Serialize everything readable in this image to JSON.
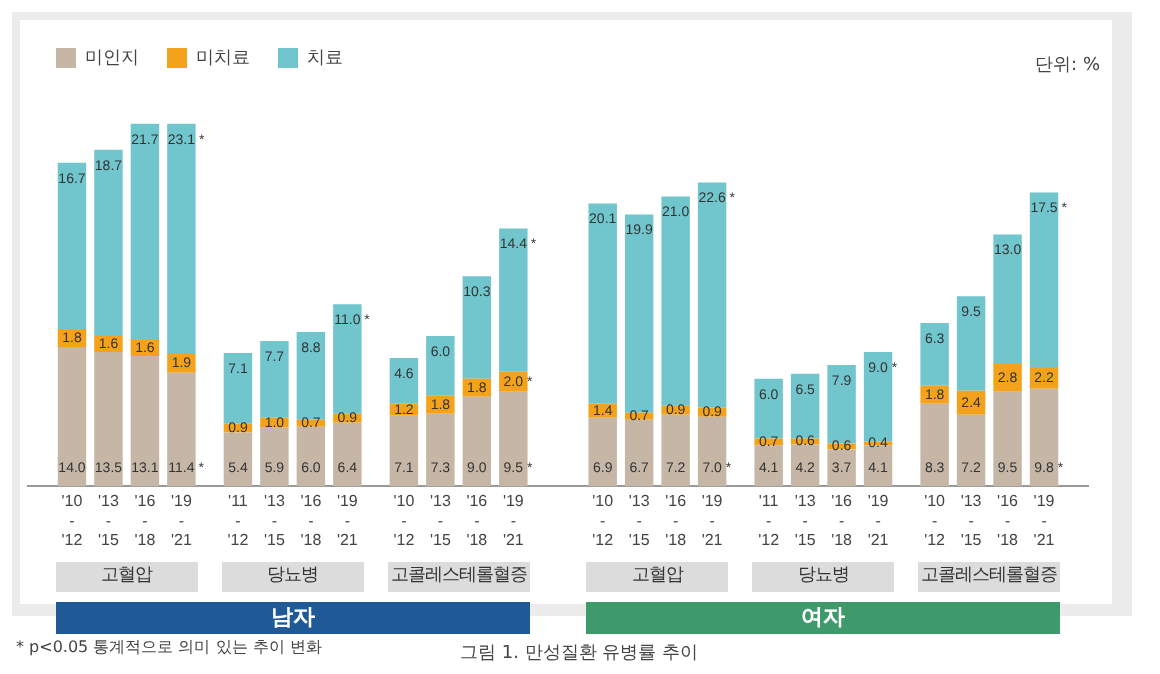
{
  "chart_data": {
    "type": "bar",
    "stacked": true,
    "legend": "top left",
    "tick_labels": "x",
    "grid": false,
    "categories": [
      "'10-'12",
      "'13-'15",
      "'16-'18",
      "'19-'21",
      "'11-'12",
      "'13-'15",
      "'16-'18",
      "'19-'21",
      "'10-'12",
      "'13-'15",
      "'16-'18",
      "'19-'21",
      "'10-'12",
      "'13-'15",
      "'16-'18",
      "'19-'21",
      "'11-'12",
      "'13-'15",
      "'16-'18",
      "'19-'21",
      "'10-'12",
      "'13-'15",
      "'16-'18",
      "'19-'21"
    ],
    "series": [
      {
        "name": "미인지",
        "color": "#c5b6a6",
        "values": [
          14.0,
          13.5,
          13.1,
          11.4,
          5.4,
          5.9,
          6.0,
          6.4,
          7.1,
          7.3,
          9.0,
          9.5,
          6.9,
          6.7,
          7.2,
          7.0,
          4.1,
          4.2,
          3.7,
          4.1,
          8.3,
          7.2,
          9.5,
          9.8
        ],
        "value_labels": [
          "14.0",
          "13.5",
          "13.1",
          "11.4 *",
          "5.4",
          "5.9",
          "6.0",
          "6.4",
          "7.1",
          "7.3",
          "9.0",
          "9.5 *",
          "6.9",
          "6.7",
          "7.2",
          "7.0 *",
          "4.1",
          "4.2",
          "3.7",
          "4.1",
          "8.3",
          "7.2",
          "9.5",
          "9.8 *"
        ]
      },
      {
        "name": "미치료",
        "color": "#f4a21c",
        "values": [
          1.8,
          1.6,
          1.6,
          1.9,
          0.9,
          1.0,
          0.7,
          0.9,
          1.2,
          1.8,
          1.8,
          2.0,
          1.4,
          0.7,
          0.9,
          0.9,
          0.7,
          0.6,
          0.6,
          0.4,
          1.8,
          2.4,
          2.8,
          2.2
        ],
        "value_labels": [
          "1.8",
          "1.6",
          "1.6",
          "1.9",
          "0.9",
          "1.0",
          "0.7",
          "0.9",
          "1.2",
          "1.8",
          "1.8",
          "2.0 *",
          "1.4",
          "0.7",
          "0.9",
          "0.9",
          "0.7",
          "0.6",
          "0.6",
          "0.4",
          "1.8",
          "2.4",
          "2.8",
          "2.2"
        ]
      },
      {
        "name": "치료",
        "color": "#71c5cc",
        "values": [
          16.7,
          18.7,
          21.7,
          23.1,
          7.1,
          7.7,
          8.8,
          11.0,
          4.6,
          6.0,
          10.3,
          14.4,
          20.1,
          19.9,
          21.0,
          22.6,
          6.0,
          6.5,
          7.9,
          9.0,
          6.3,
          9.5,
          13.0,
          17.5
        ],
        "value_labels": [
          "16.7",
          "18.7",
          "21.7",
          "23.1 *",
          "7.1",
          "7.7",
          "8.8",
          "11.0 *",
          "4.6",
          "6.0",
          "10.3",
          "14.4 *",
          "20.1",
          "19.9",
          "21.0",
          "22.6 *",
          "6.0",
          "6.5",
          "7.9",
          "9.0 *",
          "6.3",
          "9.5",
          "13.0",
          "17.5 *"
        ]
      }
    ],
    "annotations": [
      "고혈압",
      "당뇨병",
      "고콜레스테롤혈증",
      "고혈압",
      "당뇨병",
      "고콜레스테롤혈증",
      "남자",
      "여자",
      "단위: %",
      "* p<0.05 통계적으로 의미 있는 추이 변화",
      "그림 1. 만성질환 유병률 추이"
    ]
  }
}
